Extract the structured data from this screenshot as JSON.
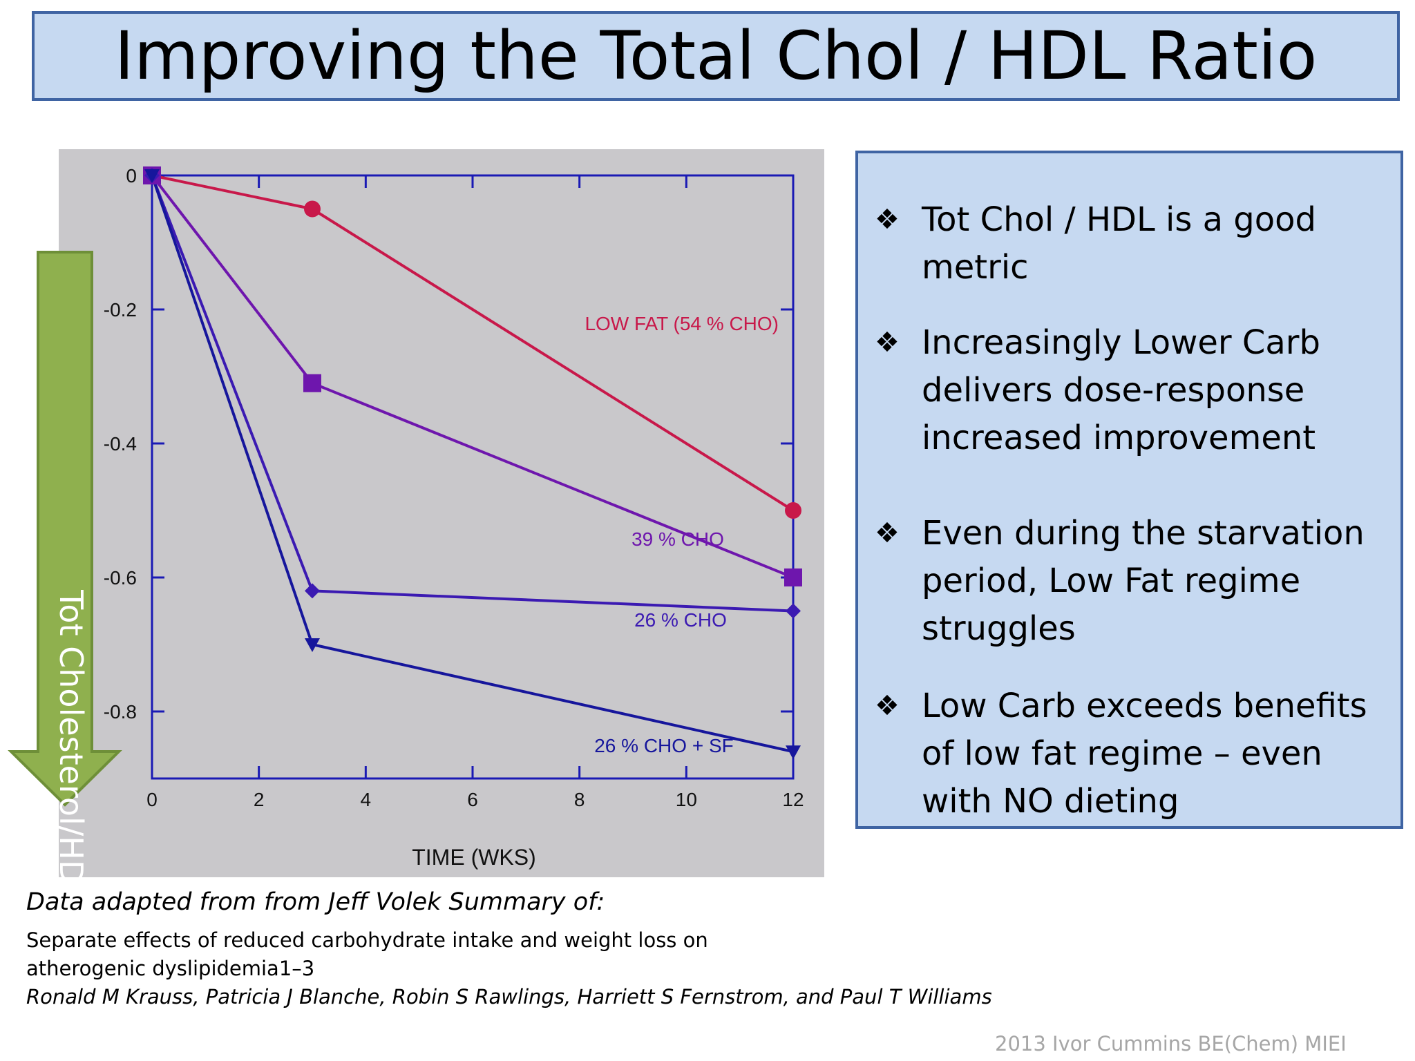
{
  "slide": {
    "title": "Improving the Total Chol / HDL Ratio",
    "arrow_label": "Tot Cholesterol/HDL",
    "bullets": [
      "Tot Chol / HDL is a good metric",
      "Increasingly Lower Carb delivers dose-response increased improvement",
      "Even during the starvation period, Low Fat regime struggles",
      "Low Carb exceeds benefits of low fat regime – even with NO dieting"
    ],
    "bullet_glyph": "❖",
    "source_heading": "Data adapted from from Jeff Volek Summary of:",
    "source_line1": "Separate effects of reduced carbohydrate intake and weight loss on",
    "source_line2": "atherogenic dyslipidemia1–3",
    "source_authors": "Ronald M Krauss, Patricia J Blanche, Robin S Rawlings, Harriett S Fernstrom, and Paul T Williams",
    "footer": "2013 Ivor Cummins BE(Chem) MIEI"
  },
  "colors": {
    "title_bg": "#c6d9f1",
    "border": "#3f64a3",
    "chart_bg": "#c9c8cb",
    "axis": "#1a1ab4",
    "arrow_fill": "#8fb04e",
    "arrow_stroke": "#6e8f38"
  },
  "chart_data": {
    "type": "line",
    "xlabel": "TIME (WKS)",
    "ylabel": "",
    "xlim": [
      0,
      12
    ],
    "ylim": [
      -0.9,
      0
    ],
    "xticks": [
      0,
      2,
      4,
      6,
      8,
      10,
      12
    ],
    "yticks": [
      0,
      -0.2,
      -0.4,
      -0.6,
      -0.8
    ],
    "ytick_labels": [
      "0",
      "-0.2",
      "-0.4",
      "-0.6",
      "-0.8"
    ],
    "series": [
      {
        "name": "LOW FAT (54 % CHO)",
        "x": [
          0,
          3,
          12
        ],
        "values": [
          0,
          -0.05,
          -0.5
        ],
        "color": "#c8184a",
        "marker": "circle"
      },
      {
        "name": "39 % CHO",
        "x": [
          0,
          3,
          12
        ],
        "values": [
          0,
          -0.31,
          -0.6
        ],
        "color": "#6e16ad",
        "marker": "square"
      },
      {
        "name": "26 % CHO",
        "x": [
          0,
          3,
          12
        ],
        "values": [
          0,
          -0.62,
          -0.65
        ],
        "color": "#3b1ab2",
        "marker": "diamond"
      },
      {
        "name": "26 % CHO + SF",
        "x": [
          0,
          3,
          12
        ],
        "values": [
          0,
          -0.7,
          -0.86
        ],
        "color": "#16169c",
        "marker": "triangle-down"
      }
    ]
  }
}
